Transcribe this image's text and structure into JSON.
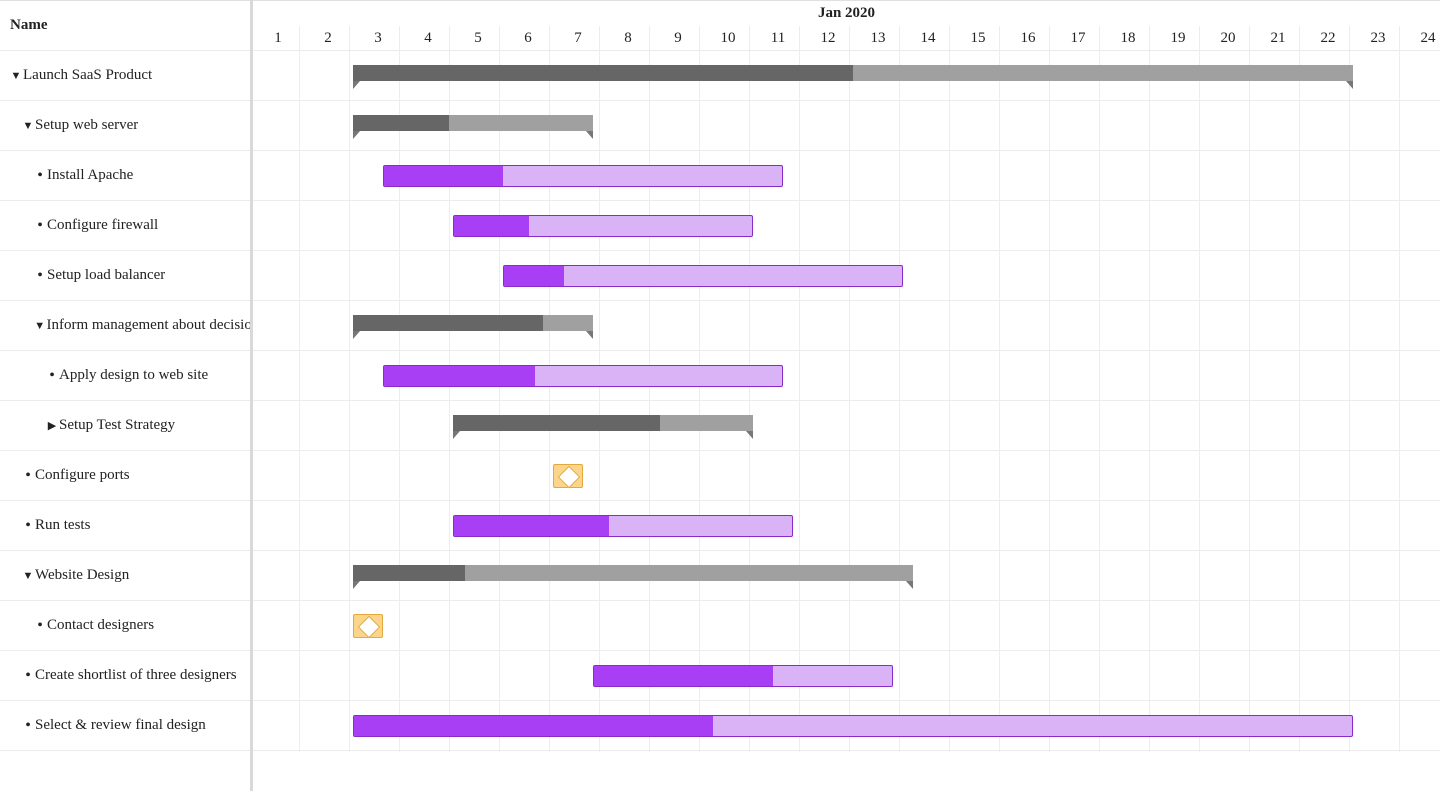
{
  "left_panel": {
    "header": "Name"
  },
  "timeline": {
    "month": "Jan 2020",
    "days": [
      "1",
      "2",
      "3",
      "4",
      "5",
      "6",
      "7",
      "8",
      "9",
      "10",
      "11",
      "12",
      "13",
      "14",
      "15",
      "16",
      "17",
      "18",
      "19",
      "20",
      "21",
      "22",
      "23",
      "24"
    ]
  },
  "symbols": {
    "expanded": "▼",
    "collapsed": "▶",
    "leaf": "•"
  },
  "colors": {
    "summary_bar": "#a0a0a0",
    "summary_progress": "#666666",
    "task_bar": "#dab3f7",
    "task_progress": "#a83ff5",
    "task_border": "#8a2bc9",
    "milestone": "#fbd58b"
  },
  "rows": [
    {
      "name": "Launch SaaS Product",
      "level": 0,
      "kind": "summary",
      "state": "expanded",
      "start": 3,
      "end": 23,
      "progress": 0.5
    },
    {
      "name": "Setup web server",
      "level": 1,
      "kind": "summary",
      "state": "expanded",
      "start": 3,
      "end": 7.8,
      "progress": 0.4
    },
    {
      "name": "Install Apache",
      "level": 2,
      "kind": "task",
      "state": "leaf",
      "start": 3.6,
      "end": 11.6,
      "progress": 0.3
    },
    {
      "name": "Configure firewall",
      "level": 2,
      "kind": "task",
      "state": "leaf",
      "start": 5,
      "end": 11,
      "progress": 0.25
    },
    {
      "name": "Setup load balancer",
      "level": 2,
      "kind": "task",
      "state": "leaf",
      "start": 6,
      "end": 14,
      "progress": 0.15
    },
    {
      "name": "Inform management about decision",
      "level": 2,
      "kind": "summary",
      "state": "expanded",
      "start": 3,
      "end": 7.8,
      "progress": 0.79
    },
    {
      "name": "Apply design to web site",
      "level": 3,
      "kind": "task",
      "state": "leaf",
      "start": 3.6,
      "end": 11.6,
      "progress": 0.38
    },
    {
      "name": "Setup Test Strategy",
      "level": 3,
      "kind": "summary",
      "state": "collapsed",
      "start": 5,
      "end": 11,
      "progress": 0.69
    },
    {
      "name": "Configure ports",
      "level": 1,
      "kind": "milestone",
      "state": "leaf",
      "start": 7
    },
    {
      "name": "Run tests",
      "level": 1,
      "kind": "task",
      "state": "leaf",
      "start": 5,
      "end": 11.8,
      "progress": 0.46
    },
    {
      "name": "Website Design",
      "level": 1,
      "kind": "summary",
      "state": "expanded",
      "start": 3,
      "end": 14.2,
      "progress": 0.2
    },
    {
      "name": "Contact designers",
      "level": 2,
      "kind": "milestone",
      "state": "leaf",
      "start": 3
    },
    {
      "name": "Create shortlist of three designers",
      "level": 1,
      "kind": "task",
      "state": "leaf",
      "start": 7.8,
      "end": 13.8,
      "progress": 0.6
    },
    {
      "name": "Select & review final design",
      "level": 1,
      "kind": "task",
      "state": "leaf",
      "start": 3,
      "end": 23,
      "progress": 0.36
    }
  ]
}
